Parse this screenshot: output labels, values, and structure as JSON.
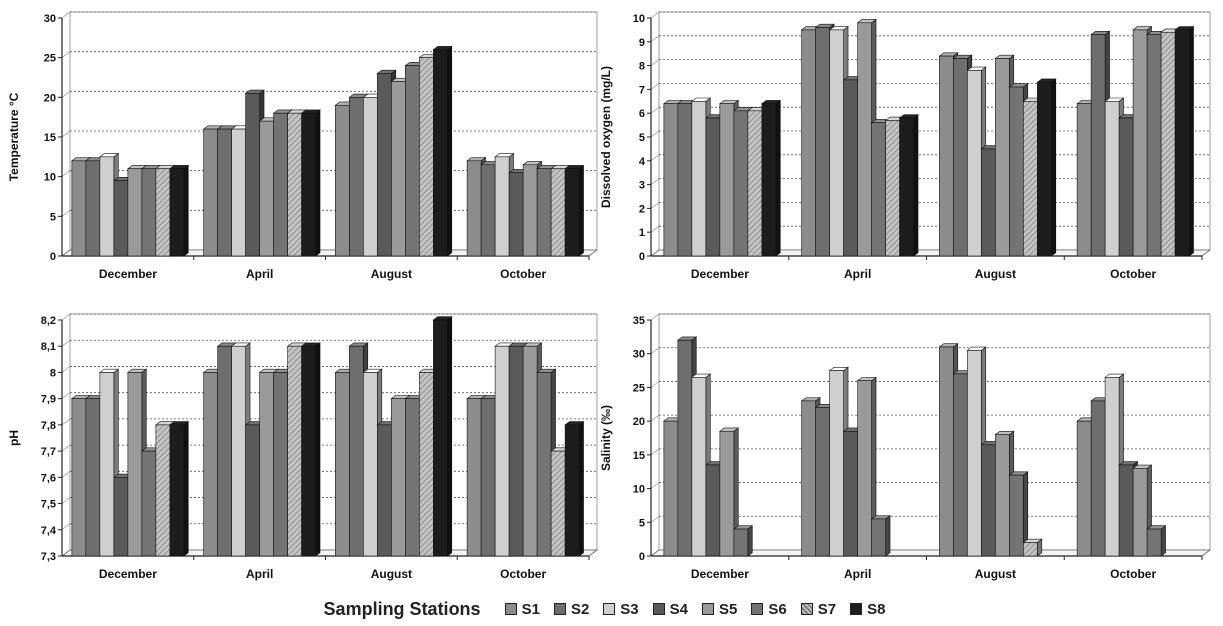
{
  "legend": {
    "title": "Sampling Stations",
    "series": [
      "S1",
      "S2",
      "S3",
      "S4",
      "S5",
      "S6",
      "S7",
      "S8"
    ],
    "colors": [
      "#8c8c8c",
      "#6e6e6e",
      "#cfcfcf",
      "#5a5a5a",
      "#9a9a9a",
      "#747474",
      "#bdbdbd",
      "#1c1c1c"
    ]
  },
  "chart_data": [
    {
      "type": "bar",
      "title": "",
      "ylabel": "Temperature °C",
      "xlabel": "",
      "categories": [
        "December",
        "April",
        "August",
        "October"
      ],
      "ylim": [
        0,
        30
      ],
      "yticks": [
        "0",
        "5",
        "10",
        "15",
        "20",
        "25",
        "30"
      ],
      "ytick_values": [
        0,
        5,
        10,
        15,
        20,
        25,
        30
      ],
      "grid": true,
      "series": [
        {
          "name": "S1",
          "values": [
            12,
            16,
            19,
            12
          ]
        },
        {
          "name": "S2",
          "values": [
            12,
            16,
            20,
            11.5
          ]
        },
        {
          "name": "S3",
          "values": [
            12.5,
            16,
            20,
            12.5
          ]
        },
        {
          "name": "S4",
          "values": [
            9.5,
            20.5,
            23,
            10.5
          ]
        },
        {
          "name": "S5",
          "values": [
            11,
            17,
            22,
            11.5
          ]
        },
        {
          "name": "S6",
          "values": [
            11,
            18,
            24,
            11
          ]
        },
        {
          "name": "S7",
          "values": [
            11,
            18,
            25,
            11
          ]
        },
        {
          "name": "S8",
          "values": [
            11,
            18,
            26,
            11
          ]
        }
      ]
    },
    {
      "type": "bar",
      "title": "",
      "ylabel": "Dissolved oxygen (mg/L)",
      "xlabel": "",
      "categories": [
        "December",
        "April",
        "August",
        "October"
      ],
      "ylim": [
        0,
        10
      ],
      "yticks": [
        "0",
        "1",
        "2",
        "3",
        "4",
        "5",
        "6",
        "7",
        "8",
        "9",
        "10"
      ],
      "ytick_values": [
        0,
        1,
        2,
        3,
        4,
        5,
        6,
        7,
        8,
        9,
        10
      ],
      "grid": true,
      "series": [
        {
          "name": "S1",
          "values": [
            6.4,
            9.5,
            8.4,
            6.4
          ]
        },
        {
          "name": "S2",
          "values": [
            6.4,
            9.6,
            8.3,
            9.3
          ]
        },
        {
          "name": "S3",
          "values": [
            6.5,
            9.5,
            7.8,
            6.5
          ]
        },
        {
          "name": "S4",
          "values": [
            5.8,
            7.4,
            4.5,
            5.8
          ]
        },
        {
          "name": "S5",
          "values": [
            6.4,
            9.8,
            8.3,
            9.5
          ]
        },
        {
          "name": "S6",
          "values": [
            6.1,
            5.6,
            7.1,
            9.3
          ]
        },
        {
          "name": "S7",
          "values": [
            6.1,
            5.7,
            6.5,
            9.4
          ]
        },
        {
          "name": "S8",
          "values": [
            6.4,
            5.8,
            7.3,
            9.5
          ]
        }
      ]
    },
    {
      "type": "bar",
      "title": "",
      "ylabel": "pH",
      "xlabel": "",
      "categories": [
        "December",
        "April",
        "August",
        "October"
      ],
      "ylim": [
        7.3,
        8.2
      ],
      "yticks": [
        "7,3",
        "7,4",
        "7,5",
        "7,6",
        "7,7",
        "7,8",
        "7,9",
        "8",
        "8,1",
        "8,2"
      ],
      "ytick_values": [
        7.3,
        7.4,
        7.5,
        7.6,
        7.7,
        7.8,
        7.9,
        8.0,
        8.1,
        8.2
      ],
      "grid": true,
      "series": [
        {
          "name": "S1",
          "values": [
            7.9,
            8.0,
            8.0,
            7.9
          ]
        },
        {
          "name": "S2",
          "values": [
            7.9,
            8.1,
            8.1,
            7.9
          ]
        },
        {
          "name": "S3",
          "values": [
            8.0,
            8.1,
            8.0,
            8.1
          ]
        },
        {
          "name": "S4",
          "values": [
            7.6,
            7.8,
            7.8,
            8.1
          ]
        },
        {
          "name": "S5",
          "values": [
            8.0,
            8.0,
            7.9,
            8.1
          ]
        },
        {
          "name": "S6",
          "values": [
            7.7,
            8.0,
            7.9,
            8.0
          ]
        },
        {
          "name": "S7",
          "values": [
            7.8,
            8.1,
            8.0,
            7.7
          ]
        },
        {
          "name": "S8",
          "values": [
            7.8,
            8.1,
            8.2,
            7.8
          ]
        }
      ]
    },
    {
      "type": "bar",
      "title": "",
      "ylabel": "Salinity (‰)",
      "xlabel": "",
      "categories": [
        "December",
        "April",
        "August",
        "October"
      ],
      "ylim": [
        0,
        35
      ],
      "yticks": [
        "0",
        "5",
        "10",
        "15",
        "20",
        "25",
        "30",
        "35"
      ],
      "ytick_values": [
        0,
        5,
        10,
        15,
        20,
        25,
        30,
        35
      ],
      "grid": true,
      "series": [
        {
          "name": "S1",
          "values": [
            20,
            23,
            31,
            20
          ]
        },
        {
          "name": "S2",
          "values": [
            32,
            22,
            27,
            23
          ]
        },
        {
          "name": "S3",
          "values": [
            26.5,
            27.5,
            30.5,
            26.5
          ]
        },
        {
          "name": "S4",
          "values": [
            13.5,
            18.5,
            16.5,
            13.5
          ]
        },
        {
          "name": "S5",
          "values": [
            18.5,
            26,
            18,
            13
          ]
        },
        {
          "name": "S6",
          "values": [
            4,
            5.5,
            12,
            4
          ]
        },
        {
          "name": "S7",
          "values": [
            null,
            null,
            2,
            null
          ]
        },
        {
          "name": "S8",
          "values": [
            null,
            null,
            null,
            null
          ]
        }
      ]
    }
  ]
}
